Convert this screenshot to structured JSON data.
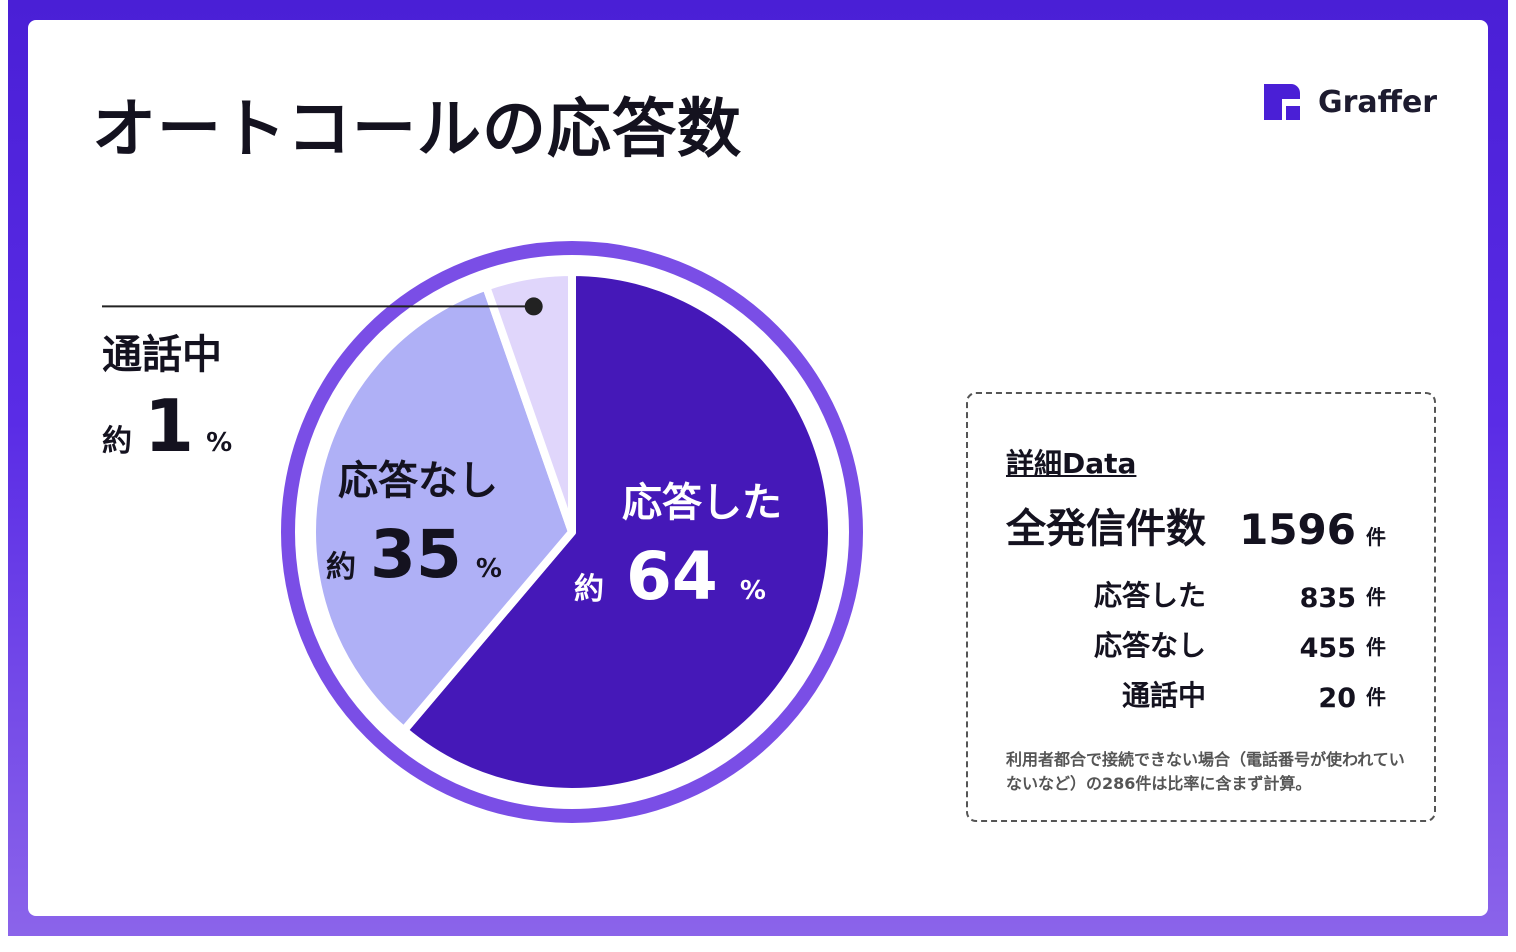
{
  "title": "オートコールの応答数",
  "brand": {
    "name": "Graffer"
  },
  "chart_data": {
    "type": "pie",
    "title": "オートコールの応答数",
    "approx_prefix": "約",
    "unit": "%",
    "slices": [
      {
        "label": "応答した",
        "percent": 64,
        "percent_text": "64",
        "color": "#4518b8"
      },
      {
        "label": "応答なし",
        "percent": 35,
        "percent_text": "35",
        "color": "#afb0f6"
      },
      {
        "label": "通話中",
        "percent": 1,
        "percent_text": "1",
        "color": "#e0d6fb"
      }
    ],
    "ring_color": "#7a4ee6"
  },
  "detail": {
    "title": "詳細Data",
    "unit": "件",
    "total": {
      "label": "全発信件数",
      "value": "1596"
    },
    "rows": [
      {
        "label": "応答した",
        "value": "835"
      },
      {
        "label": "応答なし",
        "value": "455"
      },
      {
        "label": "通話中",
        "value": "20"
      }
    ],
    "note": "利用者都合で接続できない場合（電話番号が使われていないなど）の286件は比率に含まず計算。"
  }
}
